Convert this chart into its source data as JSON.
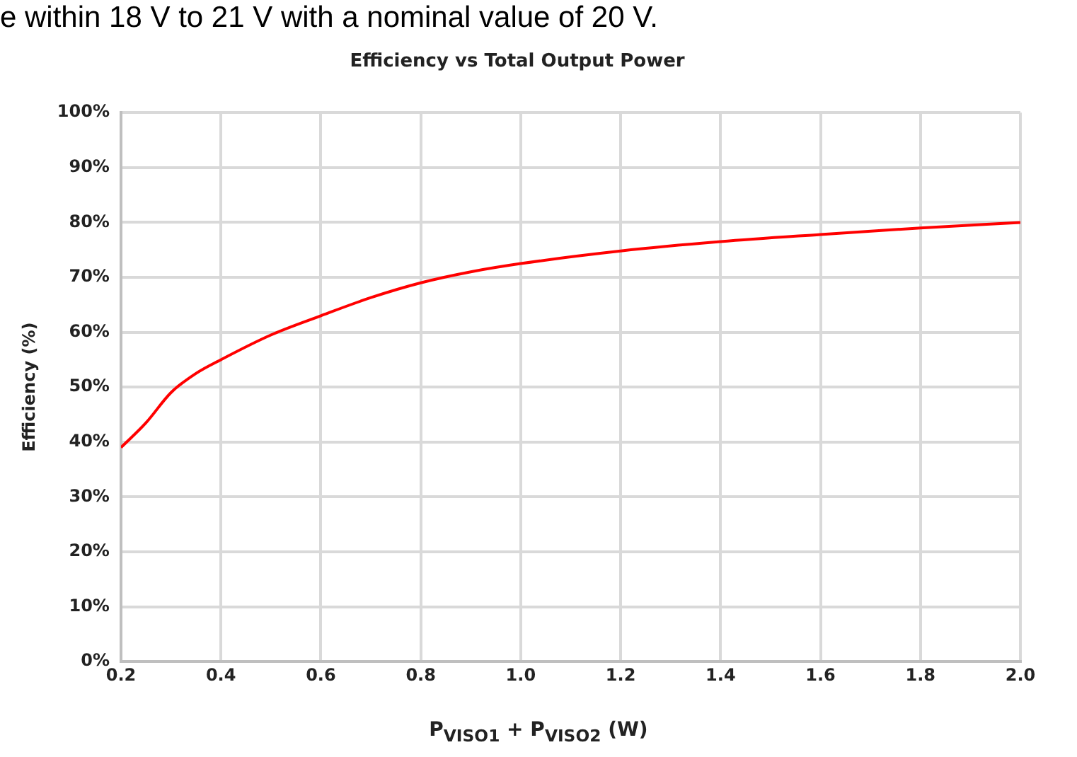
{
  "chart_data": {
    "type": "line",
    "title": "Efficiency vs Total Output Power",
    "xlabel": "P$_{VISO1}$ + P$_{VISO2}$ (W)",
    "ylabel": "Efficiency (%)",
    "annotations": [
      "e within 18 V to 21 V with a nominal value of 20 V."
    ],
    "x": [
      0.2,
      0.25,
      0.3,
      0.35,
      0.4,
      0.5,
      0.6,
      0.7,
      0.8,
      0.9,
      1.0,
      1.2,
      1.4,
      1.6,
      1.8,
      2.0
    ],
    "series": [
      {
        "color": "#ff0000",
        "values": [
          39,
          43.5,
          49,
          52.5,
          55,
          59.5,
          63,
          66.3,
          69,
          71,
          72.5,
          74.8,
          76.5,
          77.8,
          79,
          80
        ]
      }
    ],
    "xlim": [
      0.2,
      2.0
    ],
    "xticks": [
      {
        "value": 0.2,
        "label": "0.2"
      },
      {
        "value": 0.4,
        "label": "0.4"
      },
      {
        "value": 0.6,
        "label": "0.6"
      },
      {
        "value": 0.8,
        "label": "0.8"
      },
      {
        "value": 1.0,
        "label": "1.0"
      },
      {
        "value": 1.2,
        "label": "1.2"
      },
      {
        "value": 1.4,
        "label": "1.4"
      },
      {
        "value": 1.6,
        "label": "1.6"
      },
      {
        "value": 1.8,
        "label": "1.8"
      },
      {
        "value": 2.0,
        "label": "2.0"
      }
    ],
    "ylim": [
      0,
      100
    ],
    "yticks": [
      {
        "value": 0,
        "label": "0%"
      },
      {
        "value": 10,
        "label": "10%"
      },
      {
        "value": 20,
        "label": "20%"
      },
      {
        "value": 30,
        "label": "30%"
      },
      {
        "value": 40,
        "label": "40%"
      },
      {
        "value": 50,
        "label": "50%"
      },
      {
        "value": 60,
        "label": "60%"
      },
      {
        "value": 70,
        "label": "70%"
      },
      {
        "value": 80,
        "label": "80%"
      },
      {
        "value": 90,
        "label": "90%"
      },
      {
        "value": 100,
        "label": "100%"
      }
    ],
    "grid": true,
    "legend": false,
    "marker": "none",
    "line_style": "solid"
  }
}
